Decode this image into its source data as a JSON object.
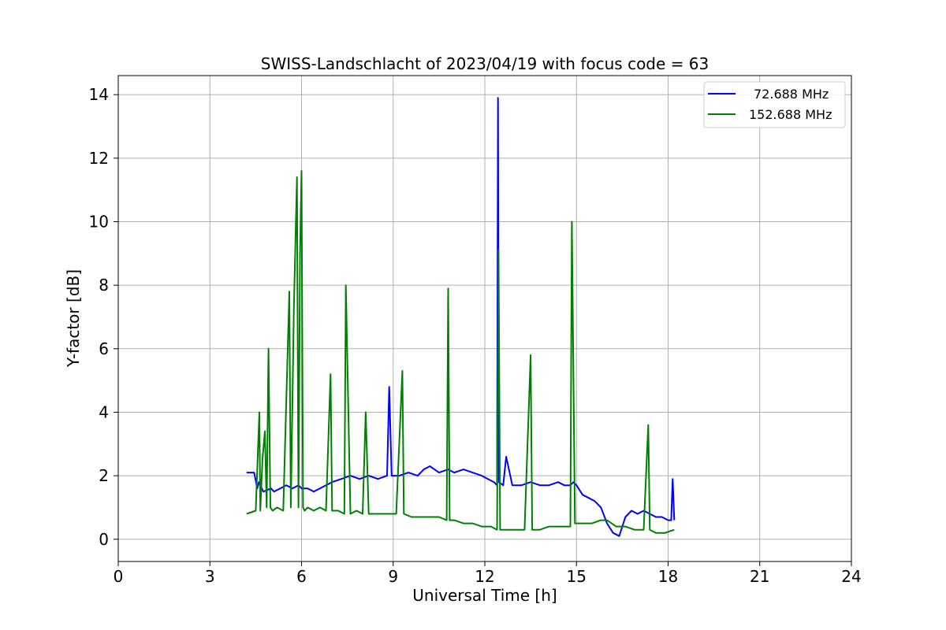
{
  "chart_data": {
    "type": "line",
    "title": "SWISS-Landschlacht of 2023/04/19 with focus code = 63",
    "xlabel": "Universal Time [h]",
    "ylabel": "Y-factor [dB]",
    "xlim": [
      0,
      24
    ],
    "ylim": [
      -0.7,
      14.6
    ],
    "xticks": [
      0,
      3,
      6,
      9,
      12,
      15,
      18,
      21,
      24
    ],
    "yticks": [
      0,
      2,
      4,
      6,
      8,
      10,
      12,
      14
    ],
    "grid": true,
    "legend_position": "top-right",
    "series": [
      {
        "name": "72.688 MHz",
        "color": "#0000ff",
        "x": [
          4.2,
          4.45,
          4.55,
          4.6,
          4.75,
          5.0,
          5.1,
          5.3,
          5.5,
          5.7,
          5.9,
          6.0,
          6.2,
          6.4,
          6.6,
          6.8,
          7.0,
          7.3,
          7.6,
          7.9,
          8.2,
          8.5,
          8.8,
          8.87,
          8.95,
          9.2,
          9.5,
          9.8,
          10.0,
          10.2,
          10.5,
          10.8,
          11.0,
          11.3,
          11.6,
          11.9,
          12.1,
          12.3,
          12.4,
          12.43,
          12.46,
          12.6,
          12.7,
          12.9,
          13.2,
          13.5,
          13.8,
          14.1,
          14.4,
          14.6,
          14.8,
          14.9,
          15.0,
          15.2,
          15.4,
          15.6,
          15.8,
          16.0,
          16.2,
          16.4,
          16.6,
          16.8,
          17.0,
          17.2,
          17.4,
          17.6,
          17.8,
          18.0,
          18.1,
          18.15,
          18.2
        ],
        "y": [
          2.1,
          2.1,
          1.6,
          1.8,
          1.5,
          1.6,
          1.5,
          1.6,
          1.7,
          1.6,
          1.7,
          1.6,
          1.6,
          1.5,
          1.6,
          1.7,
          1.8,
          1.9,
          2.0,
          1.9,
          2.0,
          1.9,
          2.0,
          4.8,
          2.0,
          2.0,
          2.1,
          2.0,
          2.2,
          2.3,
          2.1,
          2.2,
          2.1,
          2.2,
          2.1,
          2.0,
          1.9,
          1.8,
          1.7,
          13.9,
          1.8,
          1.7,
          2.6,
          1.7,
          1.7,
          1.8,
          1.7,
          1.7,
          1.8,
          1.7,
          1.7,
          1.8,
          1.7,
          1.4,
          1.3,
          1.2,
          1.0,
          0.5,
          0.2,
          0.1,
          0.7,
          0.9,
          0.8,
          0.9,
          0.8,
          0.7,
          0.7,
          0.6,
          0.6,
          1.9,
          0.6
        ]
      },
      {
        "name": "152.688 MHz",
        "color": "#008000",
        "x": [
          4.2,
          4.5,
          4.62,
          4.65,
          4.72,
          4.8,
          4.86,
          4.92,
          4.98,
          5.05,
          5.2,
          5.4,
          5.6,
          5.65,
          5.75,
          5.85,
          5.9,
          5.95,
          6.0,
          6.05,
          6.1,
          6.2,
          6.4,
          6.6,
          6.8,
          6.95,
          7.0,
          7.2,
          7.4,
          7.45,
          7.6,
          7.8,
          8.0,
          8.1,
          8.2,
          8.5,
          8.8,
          9.1,
          9.3,
          9.35,
          9.6,
          9.9,
          10.2,
          10.5,
          10.75,
          10.8,
          10.85,
          11.0,
          11.3,
          11.6,
          11.9,
          12.2,
          12.4,
          12.45,
          12.5,
          12.7,
          13.0,
          13.3,
          13.5,
          13.55,
          13.8,
          14.1,
          14.4,
          14.6,
          14.8,
          14.85,
          14.95,
          15.2,
          15.5,
          15.8,
          16.0,
          16.3,
          16.6,
          16.9,
          17.2,
          17.35,
          17.4,
          17.6,
          17.9,
          18.2
        ],
        "y": [
          0.8,
          0.9,
          4.0,
          0.9,
          2.5,
          3.4,
          1.0,
          6.0,
          1.0,
          0.9,
          1.0,
          0.9,
          7.8,
          1.0,
          7.3,
          11.4,
          1.0,
          9.0,
          11.6,
          1.0,
          0.9,
          1.0,
          0.9,
          1.0,
          0.9,
          5.2,
          0.9,
          0.9,
          0.8,
          8.0,
          0.8,
          0.9,
          0.8,
          4.0,
          0.8,
          0.8,
          0.8,
          0.8,
          5.3,
          0.8,
          0.7,
          0.7,
          0.7,
          0.7,
          0.6,
          7.9,
          0.6,
          0.6,
          0.5,
          0.5,
          0.4,
          0.4,
          0.3,
          9.1,
          0.3,
          0.3,
          0.3,
          0.3,
          5.8,
          0.3,
          0.3,
          0.4,
          0.4,
          0.4,
          0.4,
          10.0,
          0.5,
          0.5,
          0.5,
          0.6,
          0.6,
          0.4,
          0.4,
          0.3,
          0.3,
          3.6,
          0.3,
          0.2,
          0.2,
          0.3
        ]
      }
    ]
  }
}
